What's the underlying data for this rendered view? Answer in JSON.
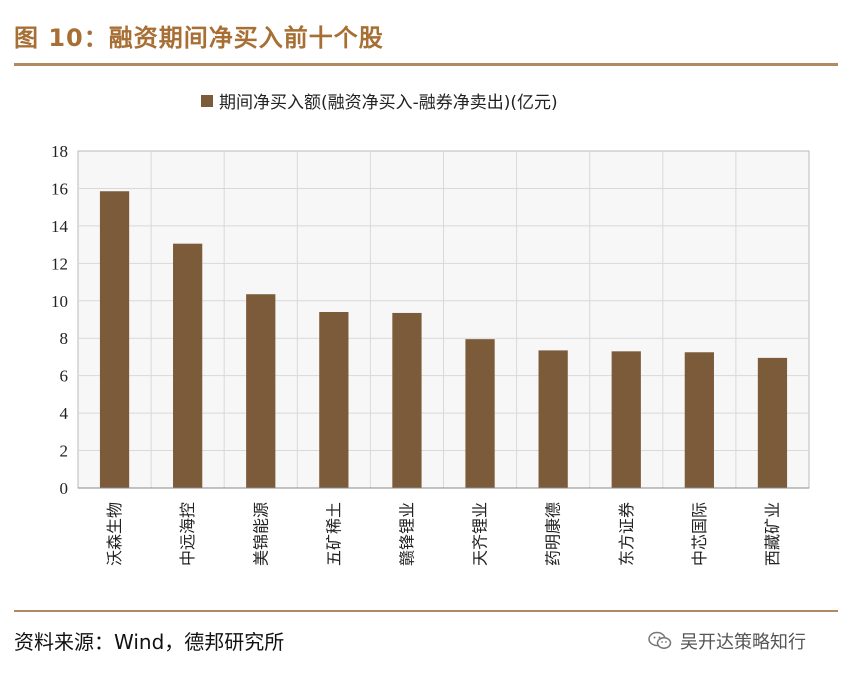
{
  "header": {
    "title": "图 10：融资期间净买入前十个股"
  },
  "footer": {
    "source": "资料来源：Wind，德邦研究所",
    "watermark": "吴开达策略知行"
  },
  "colors": {
    "bar": "#7b5b3a",
    "accent": "#a86f34",
    "rule": "#b08a63",
    "grid": "#d9d9d9",
    "plot_bg": "#f7f7f7"
  },
  "chart_data": {
    "type": "bar",
    "legend": {
      "position": "top",
      "label": "期间净买入额(融资净买入-融券净卖出)(亿元)"
    },
    "categories": [
      "沃森生物",
      "中远海控",
      "美锦能源",
      "五矿稀土",
      "赣锋锂业",
      "天齐锂业",
      "药明康德",
      "东方证券",
      "中芯国际",
      "西藏矿业"
    ],
    "series": [
      {
        "name": "期间净买入额(融资净买入-融券净卖出)(亿元)",
        "values": [
          15.85,
          13.05,
          10.35,
          9.4,
          9.35,
          7.95,
          7.35,
          7.3,
          7.25,
          6.95
        ]
      }
    ],
    "yticks": [
      "0",
      "2",
      "4",
      "6",
      "8",
      "10",
      "12",
      "14",
      "16",
      "18"
    ],
    "ylim": [
      0,
      18
    ],
    "grid": true
  }
}
